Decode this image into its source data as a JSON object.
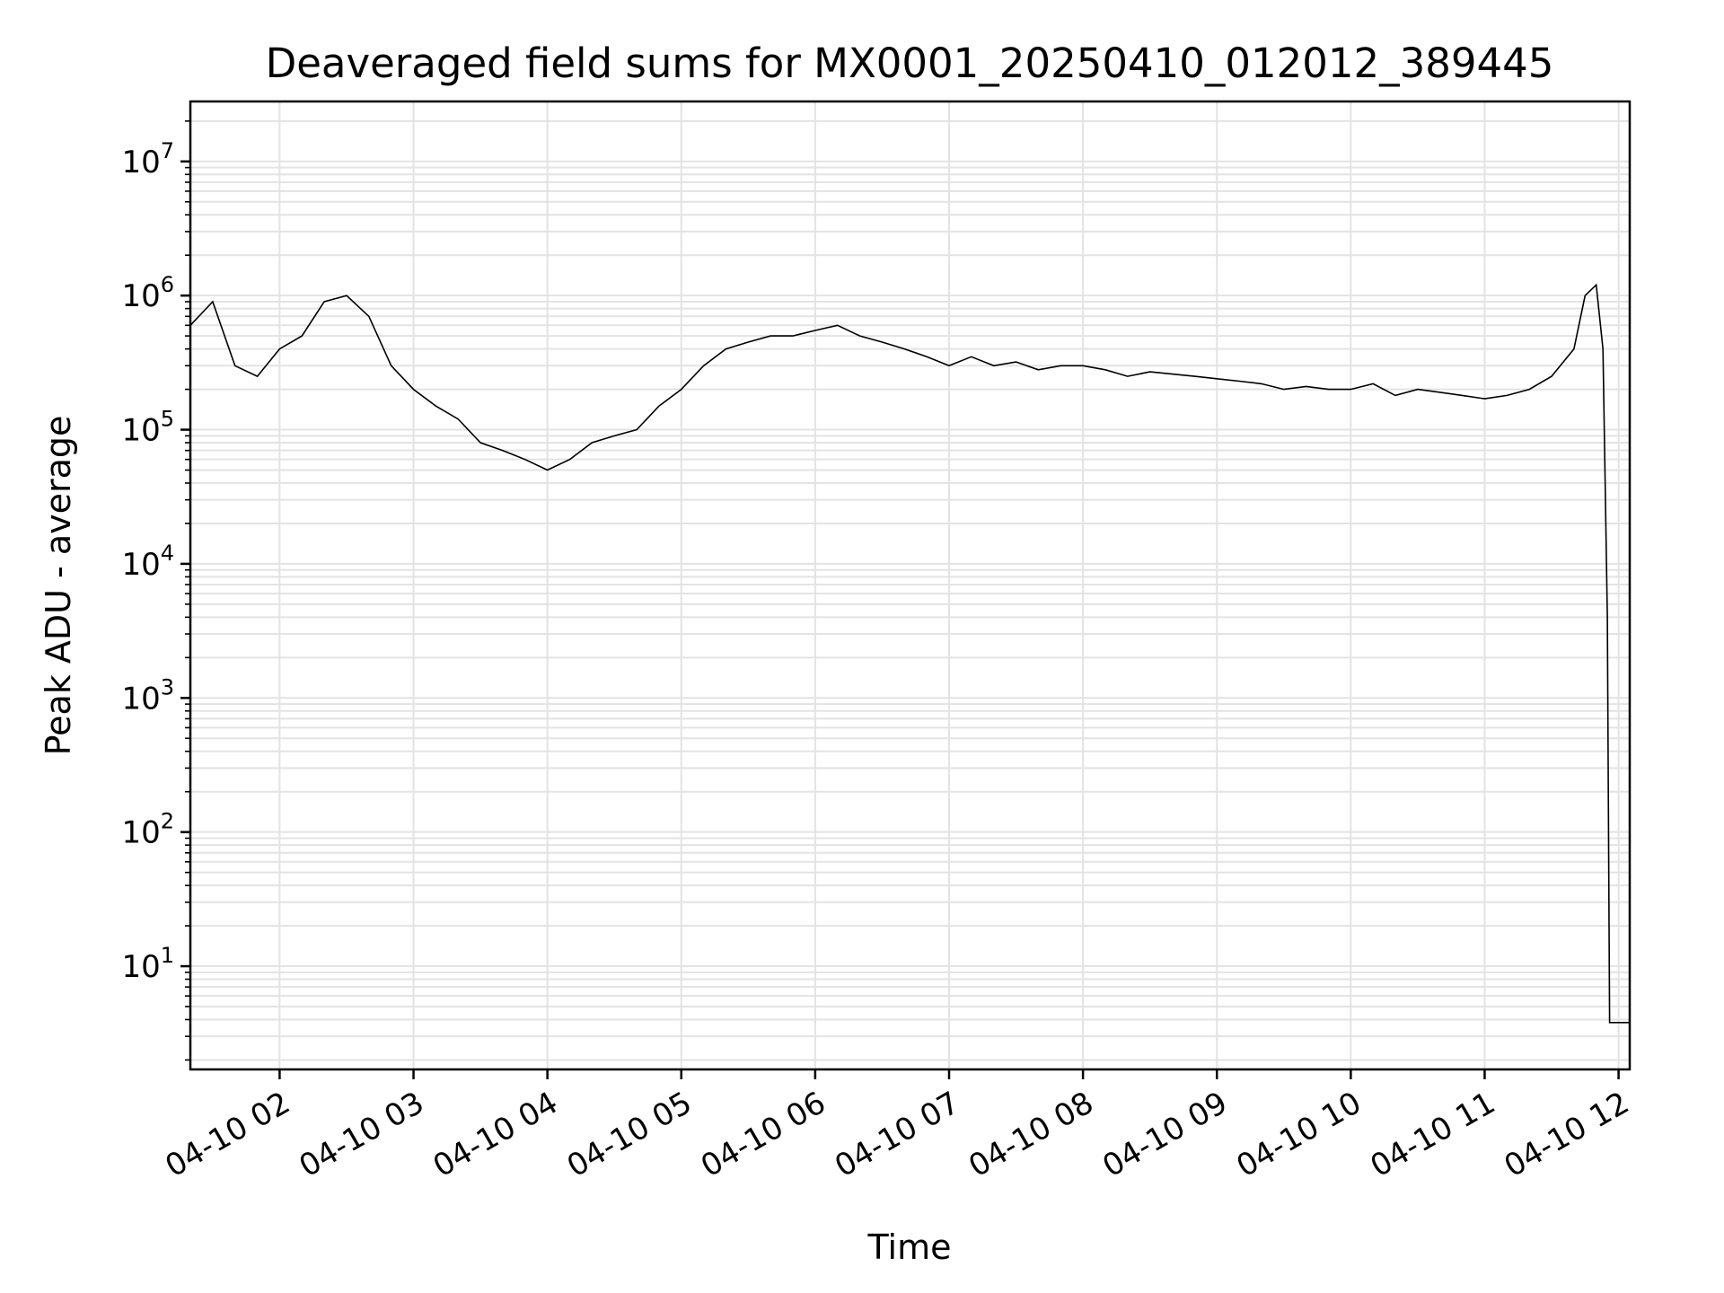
{
  "chart_data": {
    "type": "line",
    "title": "Deaveraged field sums for MX0001_20250410_012012_389445",
    "xlabel": "Time",
    "ylabel": "Peak ADU - average",
    "yscale": "log",
    "grid": true,
    "line_color": "#000000",
    "xlim": [
      "2025-04-10 01:20",
      "2025-04-10 12:05"
    ],
    "ylim": [
      1.7,
      28000000
    ],
    "x_ticks": [
      "2025-04-10 02:00",
      "2025-04-10 03:00",
      "2025-04-10 04:00",
      "2025-04-10 05:00",
      "2025-04-10 06:00",
      "2025-04-10 07:00",
      "2025-04-10 08:00",
      "2025-04-10 09:00",
      "2025-04-10 10:00",
      "2025-04-10 11:00",
      "2025-04-10 12:00"
    ],
    "x_tick_labels": [
      "04-10 02",
      "04-10 03",
      "04-10 04",
      "04-10 05",
      "04-10 06",
      "04-10 07",
      "04-10 08",
      "04-10 09",
      "04-10 10",
      "04-10 11",
      "04-10 12"
    ],
    "y_ticks": [
      10,
      100,
      1000,
      10000,
      100000,
      1000000,
      10000000
    ],
    "y_tick_labels": [
      {
        "base": "10",
        "exp": "1"
      },
      {
        "base": "10",
        "exp": "2"
      },
      {
        "base": "10",
        "exp": "3"
      },
      {
        "base": "10",
        "exp": "4"
      },
      {
        "base": "10",
        "exp": "5"
      },
      {
        "base": "10",
        "exp": "6"
      },
      {
        "base": "10",
        "exp": "7"
      }
    ],
    "series": [
      {
        "x": [
          "2025-04-10 01:20",
          "2025-04-10 01:30",
          "2025-04-10 01:40",
          "2025-04-10 01:50",
          "2025-04-10 02:00",
          "2025-04-10 02:10",
          "2025-04-10 02:20",
          "2025-04-10 02:30",
          "2025-04-10 02:40",
          "2025-04-10 02:50",
          "2025-04-10 03:00",
          "2025-04-10 03:10",
          "2025-04-10 03:20",
          "2025-04-10 03:30",
          "2025-04-10 03:40",
          "2025-04-10 03:50",
          "2025-04-10 04:00",
          "2025-04-10 04:10",
          "2025-04-10 04:20",
          "2025-04-10 04:30",
          "2025-04-10 04:40",
          "2025-04-10 04:50",
          "2025-04-10 05:00",
          "2025-04-10 05:10",
          "2025-04-10 05:20",
          "2025-04-10 05:30",
          "2025-04-10 05:40",
          "2025-04-10 05:50",
          "2025-04-10 06:00",
          "2025-04-10 06:10",
          "2025-04-10 06:20",
          "2025-04-10 06:30",
          "2025-04-10 06:40",
          "2025-04-10 06:50",
          "2025-04-10 07:00",
          "2025-04-10 07:10",
          "2025-04-10 07:20",
          "2025-04-10 07:30",
          "2025-04-10 07:40",
          "2025-04-10 07:50",
          "2025-04-10 08:00",
          "2025-04-10 08:10",
          "2025-04-10 08:20",
          "2025-04-10 08:30",
          "2025-04-10 08:40",
          "2025-04-10 08:50",
          "2025-04-10 09:00",
          "2025-04-10 09:10",
          "2025-04-10 09:20",
          "2025-04-10 09:30",
          "2025-04-10 09:40",
          "2025-04-10 09:50",
          "2025-04-10 10:00",
          "2025-04-10 10:10",
          "2025-04-10 10:20",
          "2025-04-10 10:30",
          "2025-04-10 10:40",
          "2025-04-10 10:50",
          "2025-04-10 11:00",
          "2025-04-10 11:10",
          "2025-04-10 11:20",
          "2025-04-10 11:30",
          "2025-04-10 11:40",
          "2025-04-10 11:45",
          "2025-04-10 11:50",
          "2025-04-10 11:53",
          "2025-04-10 11:55",
          "2025-04-10 11:56",
          "2025-04-10 12:00",
          "2025-04-10 12:05"
        ],
        "y": [
          600000,
          900000,
          300000,
          250000,
          400000,
          500000,
          900000,
          1000000,
          700000,
          300000,
          200000,
          150000,
          120000,
          80000,
          70000,
          60000,
          50000,
          60000,
          80000,
          90000,
          100000,
          150000,
          200000,
          300000,
          400000,
          450000,
          500000,
          500000,
          550000,
          600000,
          500000,
          450000,
          400000,
          350000,
          300000,
          350000,
          300000,
          320000,
          280000,
          300000,
          300000,
          280000,
          250000,
          270000,
          260000,
          250000,
          240000,
          230000,
          220000,
          200000,
          210000,
          200000,
          200000,
          220000,
          180000,
          200000,
          190000,
          180000,
          170000,
          180000,
          200000,
          250000,
          400000,
          1000000,
          1200000,
          400000,
          4000,
          3.8,
          3.8,
          3.8
        ]
      }
    ]
  }
}
